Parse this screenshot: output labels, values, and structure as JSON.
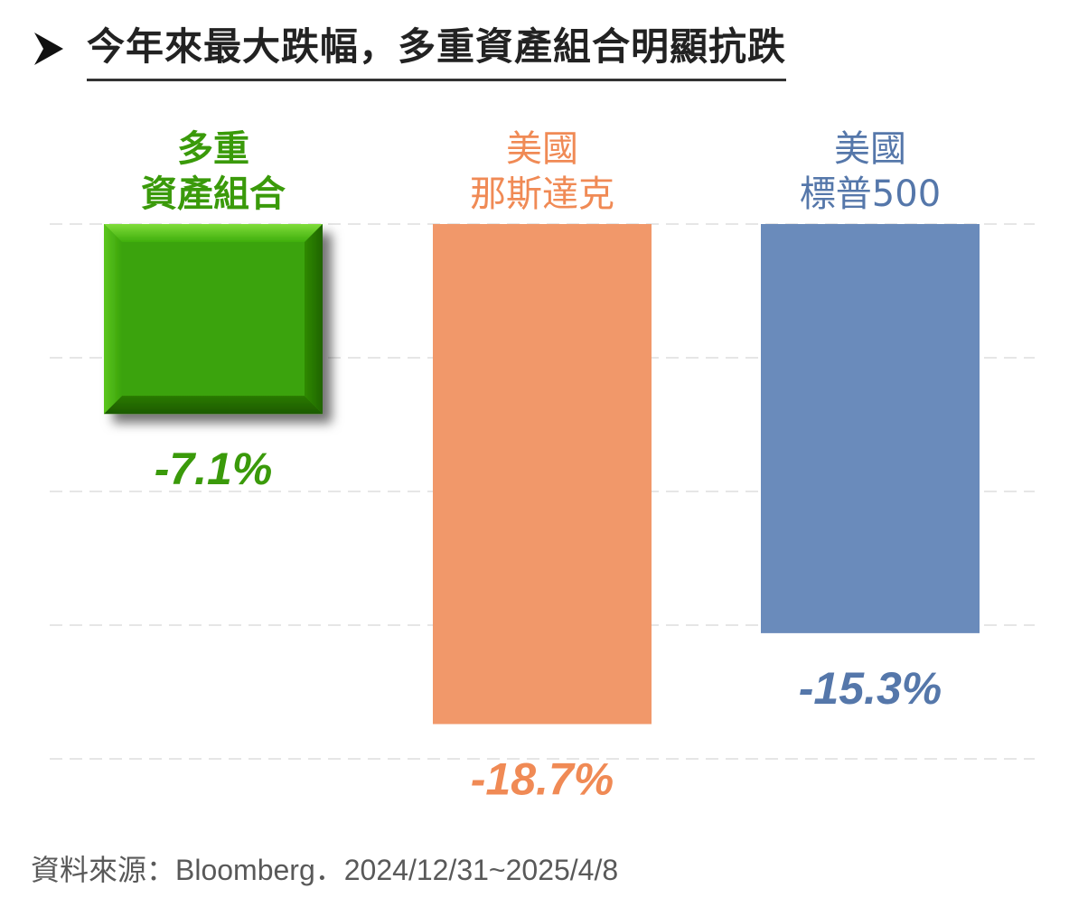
{
  "title": "今年來最大跌幅，多重資產組合明顯抗跌",
  "source": "資料來源：Bloomberg．2024/12/31~2025/4/8",
  "chart_data": {
    "type": "bar",
    "categories": [
      [
        "多重",
        "資產組合"
      ],
      [
        "美國",
        "那斯達克"
      ],
      [
        "美國",
        "標普500"
      ]
    ],
    "values": [
      -7.1,
      -18.7,
      -15.3
    ],
    "value_labels": [
      "-7.1%",
      "-18.7%",
      "-15.3%"
    ],
    "colors": [
      "#3aa30a",
      "#f1986a",
      "#6a8bbb"
    ],
    "label_colors": [
      "#3a9a0a",
      "#f08a55",
      "#5577aa"
    ],
    "ylim": [
      -20,
      0
    ],
    "grid": true,
    "legend": false,
    "xlabel": "",
    "ylabel": ""
  }
}
